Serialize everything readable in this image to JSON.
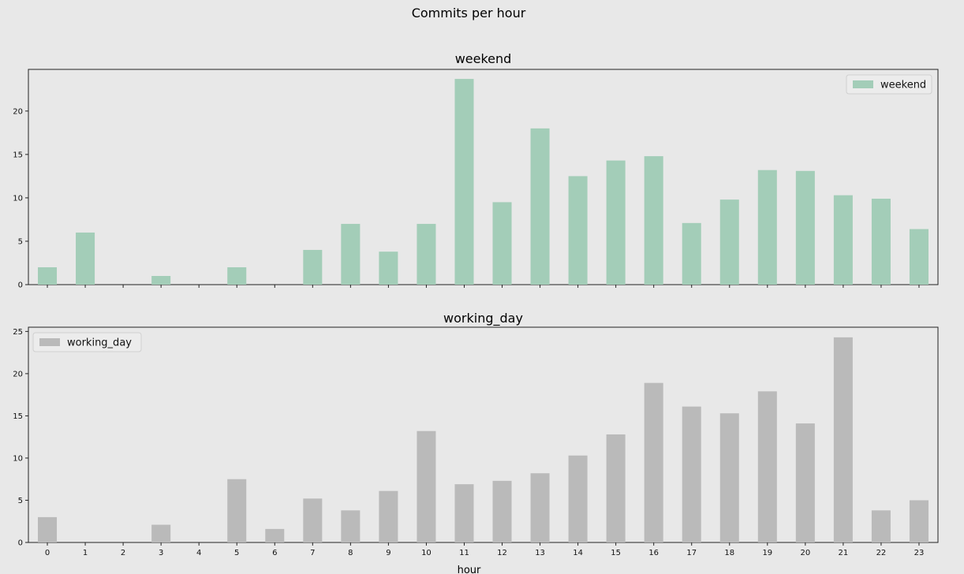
{
  "figure": {
    "suptitle": "Commits per hour"
  },
  "chart_data": [
    {
      "type": "bar",
      "title": "weekend",
      "xlabel": "",
      "ylabel": "",
      "categories": [
        "0",
        "1",
        "2",
        "3",
        "4",
        "5",
        "6",
        "7",
        "8",
        "9",
        "10",
        "11",
        "12",
        "13",
        "14",
        "15",
        "16",
        "17",
        "18",
        "19",
        "20",
        "21",
        "22",
        "23"
      ],
      "series": [
        {
          "name": "weekend",
          "color": "#a3cdb8",
          "values": [
            2,
            6,
            0,
            1,
            0,
            2,
            0,
            4,
            7,
            3.8,
            7,
            23.7,
            9.5,
            18,
            12.5,
            14.3,
            14.8,
            7.1,
            9.8,
            13.2,
            13.1,
            10.3,
            9.9,
            6.4
          ]
        }
      ],
      "ylim": [
        0,
        24.8
      ],
      "yticks": [
        0,
        5,
        10,
        15,
        20
      ],
      "show_xticklabels": false,
      "legend_position": "top-right",
      "grid": false
    },
    {
      "type": "bar",
      "title": "working_day",
      "xlabel": "hour",
      "ylabel": "",
      "categories": [
        "0",
        "1",
        "2",
        "3",
        "4",
        "5",
        "6",
        "7",
        "8",
        "9",
        "10",
        "11",
        "12",
        "13",
        "14",
        "15",
        "16",
        "17",
        "18",
        "19",
        "20",
        "21",
        "22",
        "23"
      ],
      "series": [
        {
          "name": "working_day",
          "color": "#bababa",
          "values": [
            3,
            0,
            0,
            2.1,
            0,
            7.5,
            1.6,
            5.2,
            3.8,
            6.1,
            13.2,
            6.9,
            7.3,
            8.2,
            10.3,
            12.8,
            18.9,
            16.1,
            15.3,
            17.9,
            14.1,
            24.3,
            3.8,
            5
          ]
        }
      ],
      "ylim": [
        0,
        25.5
      ],
      "yticks": [
        0,
        5,
        10,
        15,
        20,
        25
      ],
      "show_xticklabels": true,
      "legend_position": "top-left",
      "grid": false
    }
  ]
}
